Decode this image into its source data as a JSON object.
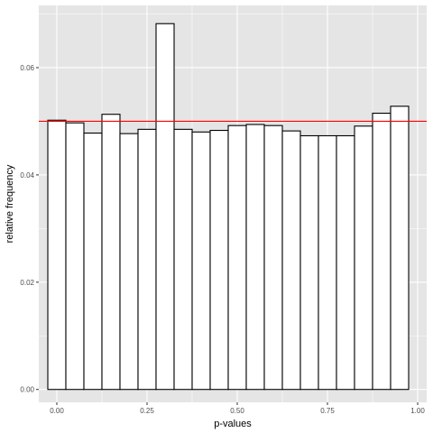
{
  "chart_data": {
    "type": "bar",
    "subtype": "histogram",
    "title": "",
    "xlabel": "p-values",
    "ylabel": "relative frequency",
    "bin_width": 0.05,
    "bin_centers": [
      0.0,
      0.05,
      0.1,
      0.15,
      0.2,
      0.25,
      0.3,
      0.35,
      0.4,
      0.45,
      0.5,
      0.55,
      0.6,
      0.65,
      0.7,
      0.75,
      0.8,
      0.85,
      0.9,
      0.95
    ],
    "values": [
      0.0502,
      0.0497,
      0.0478,
      0.0513,
      0.0477,
      0.0485,
      0.0682,
      0.0485,
      0.048,
      0.0483,
      0.0492,
      0.0494,
      0.0492,
      0.0482,
      0.0473,
      0.0473,
      0.0473,
      0.0491,
      0.0515,
      0.0528
    ],
    "reference_line": {
      "y": 0.05,
      "color": "#ff0000"
    },
    "xlim": [
      -0.05,
      1.025
    ],
    "ylim": [
      -0.0024,
      0.0716
    ],
    "xticks": [
      0.0,
      0.25,
      0.5,
      0.75,
      1.0
    ],
    "xtick_labels": [
      "0.00",
      "0.25",
      "0.50",
      "0.75",
      "1.00"
    ],
    "yticks": [
      0.0,
      0.02,
      0.04,
      0.06
    ],
    "ytick_labels": [
      "0.00",
      "0.02",
      "0.04",
      "0.06"
    ],
    "grid": true,
    "legend": "none",
    "colors": {
      "panel_background": "#e5e5e5",
      "grid": "#ffffff",
      "bar_fill": "#ffffff",
      "bar_outline": "#000000"
    }
  }
}
